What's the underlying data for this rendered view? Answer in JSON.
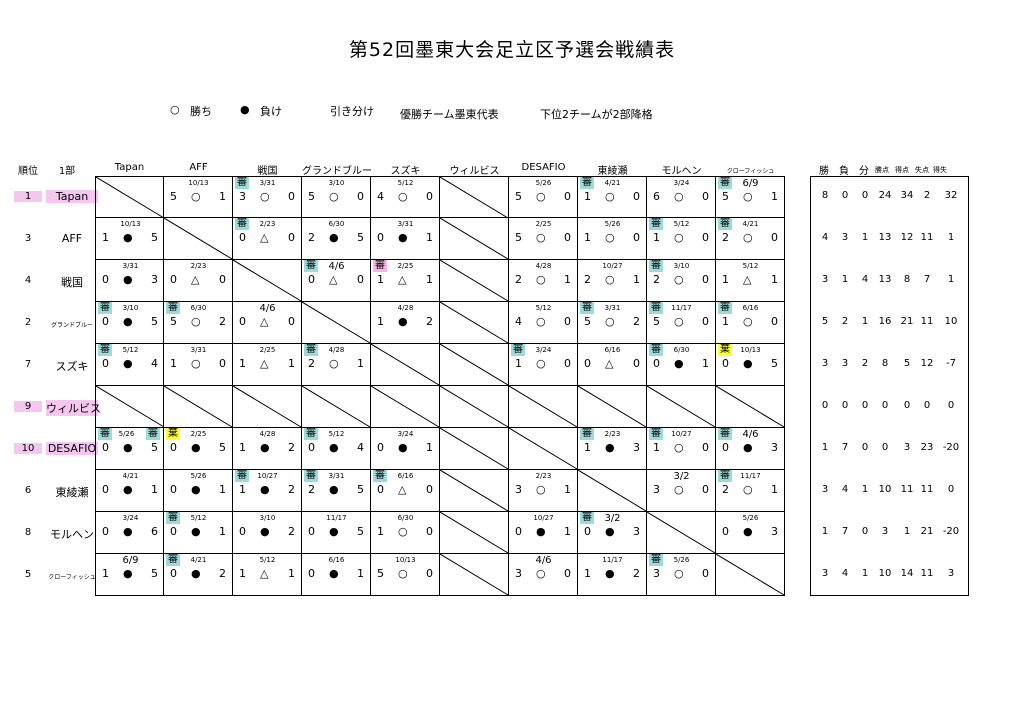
{
  "title": "第52回墨東大会足立区予選会戦績表",
  "legend": {
    "win_symbol": "○",
    "win_label": "勝ち",
    "loss_symbol": "●",
    "loss_label": "負け",
    "draw_label": "引き分け",
    "note1": "優勝チーム墨東代表",
    "note2": "下位2チームが2部降格"
  },
  "headers": {
    "rank": "順位",
    "division": "1部",
    "teams": [
      "Tapan",
      "AFF",
      "戦国",
      "グランドブルー",
      "スズキ",
      "ウィルビス",
      "DESAFIO",
      "東綾瀬",
      "モルヘン",
      "クローフィッシュ"
    ],
    "stats": [
      "勝",
      "負",
      "分",
      "勝点",
      "得点",
      "失点",
      "得失"
    ]
  },
  "referee_mark": "審",
  "forfeit_mark": "棄",
  "rows": [
    {
      "rank": "1",
      "team": "Tapan",
      "highlight": true,
      "stats": [
        "8",
        "0",
        "0",
        "24",
        "34",
        "2",
        "32"
      ],
      "cells": [
        null,
        {
          "date": "10/13",
          "l": "5",
          "r": "○",
          "s": "1"
        },
        {
          "ref": "teal",
          "date": "3/31",
          "l": "3",
          "r": "○",
          "s": "0"
        },
        {
          "date": "3/10",
          "l": "5",
          "r": "○",
          "s": "0"
        },
        {
          "date": "5/12",
          "l": "4",
          "r": "○",
          "s": "0"
        },
        "x",
        {
          "date": "5/26",
          "l": "5",
          "r": "○",
          "s": "0"
        },
        {
          "ref": "teal",
          "date": "4/21",
          "l": "1",
          "r": "○",
          "s": "0"
        },
        {
          "date": "3/24",
          "l": "6",
          "r": "○",
          "s": "0"
        },
        {
          "ref": "teal",
          "date": "6/9",
          "big": true,
          "l": "5",
          "r": "○",
          "s": "1"
        }
      ]
    },
    {
      "rank": "3",
      "team": "AFF",
      "stats": [
        "4",
        "3",
        "1",
        "13",
        "12",
        "11",
        "1"
      ],
      "cells": [
        {
          "date": "10/13",
          "l": "1",
          "r": "●",
          "s": "5"
        },
        null,
        {
          "ref": "teal",
          "date": "2/23",
          "l": "0",
          "r": "△",
          "s": "0"
        },
        {
          "date": "6/30",
          "l": "2",
          "r": "●",
          "s": "5"
        },
        {
          "date": "3/31",
          "l": "0",
          "r": "●",
          "s": "1"
        },
        "x",
        {
          "date": "2/25",
          "l": "5",
          "r": "○",
          "s": "0"
        },
        {
          "date": "5/26",
          "l": "1",
          "r": "○",
          "s": "0"
        },
        {
          "ref": "teal",
          "date": "5/12",
          "l": "1",
          "r": "○",
          "s": "0"
        },
        {
          "ref": "teal",
          "date": "4/21",
          "l": "2",
          "r": "○",
          "s": "0"
        }
      ]
    },
    {
      "rank": "4",
      "team": "戦国",
      "stats": [
        "3",
        "1",
        "4",
        "13",
        "8",
        "7",
        "1"
      ],
      "cells": [
        {
          "date": "3/31",
          "l": "0",
          "r": "●",
          "s": "3"
        },
        {
          "date": "2/23",
          "l": "0",
          "r": "△",
          "s": "0"
        },
        null,
        {
          "ref": "teal",
          "date": "4/6",
          "big": true,
          "l": "0",
          "r": "△",
          "s": "0"
        },
        {
          "ref": "pink",
          "date": "2/25",
          "l": "1",
          "r": "△",
          "s": "1"
        },
        "x",
        {
          "date": "4/28",
          "l": "2",
          "r": "○",
          "s": "1"
        },
        {
          "date": "10/27",
          "l": "2",
          "r": "○",
          "s": "1"
        },
        {
          "ref": "teal",
          "date": "3/10",
          "l": "2",
          "r": "○",
          "s": "0"
        },
        {
          "date": "5/12",
          "l": "1",
          "r": "△",
          "s": "1"
        }
      ]
    },
    {
      "rank": "2",
      "team": "グランドブルー",
      "small": true,
      "stats": [
        "5",
        "2",
        "1",
        "16",
        "21",
        "11",
        "10"
      ],
      "cells": [
        {
          "ref": "teal",
          "date": "3/10",
          "l": "0",
          "r": "●",
          "s": "5"
        },
        {
          "ref": "teal",
          "date": "6/30",
          "l": "5",
          "r": "○",
          "s": "2"
        },
        {
          "date": "4/6",
          "big": true,
          "l": "0",
          "r": "△",
          "s": "0"
        },
        null,
        {
          "date": "4/28",
          "l": "1",
          "r": "●",
          "s": "2"
        },
        "x",
        {
          "date": "5/12",
          "l": "4",
          "r": "○",
          "s": "0"
        },
        {
          "ref": "teal",
          "date": "3/31",
          "l": "5",
          "r": "○",
          "s": "2"
        },
        {
          "ref": "teal",
          "date": "11/17",
          "l": "5",
          "r": "○",
          "s": "0"
        },
        {
          "ref": "teal",
          "date": "6/16",
          "l": "1",
          "r": "○",
          "s": "0"
        }
      ]
    },
    {
      "rank": "7",
      "team": "スズキ",
      "stats": [
        "3",
        "3",
        "2",
        "8",
        "5",
        "12",
        "-7"
      ],
      "cells": [
        {
          "ref": "teal",
          "date": "5/12",
          "l": "0",
          "r": "●",
          "s": "4"
        },
        {
          "date": "3/31",
          "l": "1",
          "r": "○",
          "s": "0"
        },
        {
          "date": "2/25",
          "l": "1",
          "r": "△",
          "s": "1"
        },
        {
          "ref": "teal",
          "date": "4/28",
          "l": "2",
          "r": "○",
          "s": "1"
        },
        null,
        "x",
        {
          "ref": "teal",
          "date": "3/24",
          "l": "1",
          "r": "○",
          "s": "0"
        },
        {
          "date": "6/16",
          "l": "0",
          "r": "△",
          "s": "0"
        },
        {
          "ref": "teal",
          "date": "6/30",
          "l": "0",
          "r": "●",
          "s": "1"
        },
        {
          "ref": "yel",
          "forfeit": true,
          "date": "10/13",
          "l": "0",
          "r": "●",
          "s": "5"
        }
      ]
    },
    {
      "rank": "9",
      "team": "ウィルビス",
      "highlight": true,
      "stats": [
        "0",
        "0",
        "0",
        "0",
        "0",
        "0",
        "0"
      ],
      "cells": [
        "x",
        "x",
        "x",
        "x",
        "x",
        null,
        "x",
        "x",
        "x",
        "x"
      ]
    },
    {
      "rank": "10",
      "team": "DESAFIO",
      "highlight": true,
      "stats": [
        "1",
        "7",
        "0",
        "0",
        "3",
        "23",
        "-20"
      ],
      "cells": [
        {
          "ref": "teal",
          "ref2": true,
          "date": "5/26",
          "l": "0",
          "r": "●",
          "s": "5"
        },
        {
          "ref": "yel",
          "forfeit": true,
          "date": "2/25",
          "l": "0",
          "r": "●",
          "s": "5"
        },
        {
          "date": "4/28",
          "l": "1",
          "r": "●",
          "s": "2"
        },
        {
          "ref": "teal",
          "date": "5/12",
          "l": "0",
          "r": "●",
          "s": "4"
        },
        {
          "date": "3/24",
          "l": "0",
          "r": "●",
          "s": "1"
        },
        "x",
        null,
        {
          "ref": "teal",
          "date": "2/23",
          "l": "1",
          "r": "●",
          "s": "3"
        },
        {
          "ref": "teal",
          "date": "10/27",
          "l": "1",
          "r": "○",
          "s": "0"
        },
        {
          "ref": "teal",
          "date": "4/6",
          "big": true,
          "l": "0",
          "r": "●",
          "s": "3"
        }
      ]
    },
    {
      "rank": "6",
      "team": "東綾瀬",
      "stats": [
        "3",
        "4",
        "1",
        "10",
        "11",
        "11",
        "0"
      ],
      "cells": [
        {
          "date": "4/21",
          "l": "0",
          "r": "●",
          "s": "1"
        },
        {
          "date": "5/26",
          "l": "0",
          "r": "●",
          "s": "1"
        },
        {
          "ref": "teal",
          "date": "10/27",
          "l": "1",
          "r": "●",
          "s": "2"
        },
        {
          "ref": "teal",
          "date": "3/31",
          "l": "2",
          "r": "●",
          "s": "5"
        },
        {
          "ref": "teal",
          "date": "6/16",
          "l": "0",
          "r": "△",
          "s": "0"
        },
        "x",
        {
          "date": "2/23",
          "l": "3",
          "r": "○",
          "s": "1"
        },
        null,
        {
          "date": "3/2",
          "big": true,
          "l": "3",
          "r": "○",
          "s": "0"
        },
        {
          "ref": "teal",
          "date": "11/17",
          "l": "2",
          "r": "○",
          "s": "1"
        }
      ]
    },
    {
      "rank": "8",
      "team": "モルヘン",
      "stats": [
        "1",
        "7",
        "0",
        "3",
        "1",
        "21",
        "-20"
      ],
      "cells": [
        {
          "date": "3/24",
          "l": "0",
          "r": "●",
          "s": "6"
        },
        {
          "ref": "teal",
          "date": "5/12",
          "l": "0",
          "r": "●",
          "s": "1"
        },
        {
          "date": "3/10",
          "l": "0",
          "r": "●",
          "s": "2"
        },
        {
          "date": "11/17",
          "l": "0",
          "r": "●",
          "s": "5"
        },
        {
          "date": "6/30",
          "l": "1",
          "r": "○",
          "s": "0"
        },
        "x",
        {
          "date": "10/27",
          "l": "0",
          "r": "●",
          "s": "1"
        },
        {
          "ref": "teal",
          "date": "3/2",
          "big": true,
          "l": "0",
          "r": "●",
          "s": "3"
        },
        null,
        {
          "date": "5/26",
          "l": "0",
          "r": "●",
          "s": "3"
        }
      ]
    },
    {
      "rank": "5",
      "team": "クローフィッシュ",
      "small": true,
      "stats": [
        "3",
        "4",
        "1",
        "10",
        "14",
        "11",
        "3"
      ],
      "cells": [
        {
          "date": "6/9",
          "big": true,
          "l": "1",
          "r": "●",
          "s": "5"
        },
        {
          "ref": "teal",
          "date": "4/21",
          "l": "0",
          "r": "●",
          "s": "2"
        },
        {
          "date": "5/12",
          "l": "1",
          "r": "△",
          "s": "1"
        },
        {
          "date": "6/16",
          "l": "0",
          "r": "●",
          "s": "1"
        },
        {
          "date": "10/13",
          "l": "5",
          "r": "○",
          "s": "0"
        },
        "x",
        {
          "date": "4/6",
          "big": true,
          "l": "3",
          "r": "○",
          "s": "0"
        },
        {
          "date": "11/17",
          "l": "1",
          "r": "●",
          "s": "2"
        },
        {
          "ref": "teal",
          "date": "5/26",
          "l": "3",
          "r": "○",
          "s": "0"
        },
        null
      ]
    }
  ]
}
